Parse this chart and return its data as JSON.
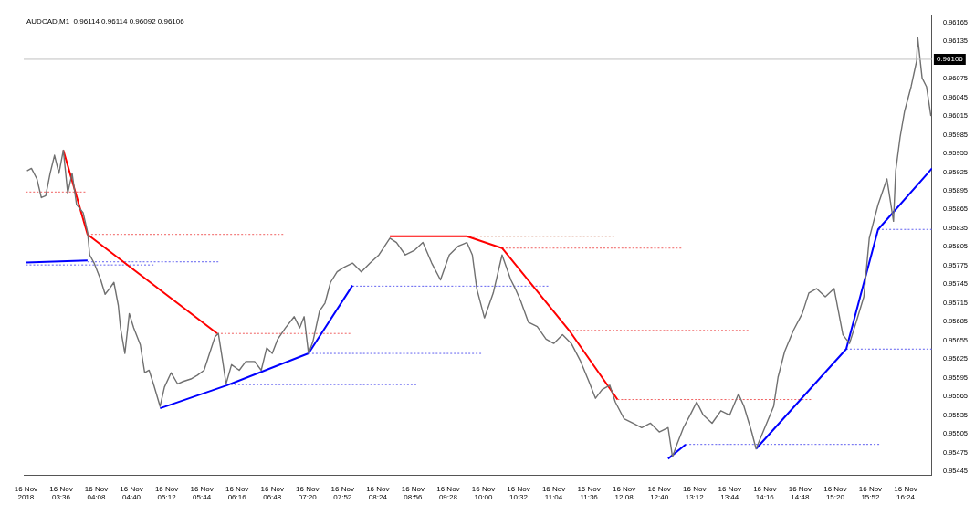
{
  "chart_data": {
    "type": "line",
    "title": "AUDCAD,M1  0.96114 0.96114 0.96092 0.96106",
    "xlim": [
      "2018-11-16T03:02",
      "2018-11-16T16:48"
    ],
    "xticks": [
      {
        "value": "2018-11-16T03:04",
        "label": "16 Nov 2018"
      },
      {
        "value": "2018-11-16T03:36",
        "label": "16 Nov 03:36"
      },
      {
        "value": "2018-11-16T04:08",
        "label": "16 Nov 04:08"
      },
      {
        "value": "2018-11-16T04:40",
        "label": "16 Nov 04:40"
      },
      {
        "value": "2018-11-16T05:12",
        "label": "16 Nov 05:12"
      },
      {
        "value": "2018-11-16T05:44",
        "label": "16 Nov 05:44"
      },
      {
        "value": "2018-11-16T06:16",
        "label": "16 Nov 06:16"
      },
      {
        "value": "2018-11-16T06:48",
        "label": "16 Nov 06:48"
      },
      {
        "value": "2018-11-16T07:20",
        "label": "16 Nov 07:20"
      },
      {
        "value": "2018-11-16T07:52",
        "label": "16 Nov 07:52"
      },
      {
        "value": "2018-11-16T08:24",
        "label": "16 Nov 08:24"
      },
      {
        "value": "2018-11-16T08:56",
        "label": "16 Nov 08:56"
      },
      {
        "value": "2018-11-16T09:28",
        "label": "16 Nov 09:28"
      },
      {
        "value": "2018-11-16T10:00",
        "label": "16 Nov 10:00"
      },
      {
        "value": "2018-11-16T10:32",
        "label": "16 Nov 10:32"
      },
      {
        "value": "2018-11-16T11:04",
        "label": "16 Nov 11:04"
      },
      {
        "value": "2018-11-16T11:36",
        "label": "16 Nov 11:36"
      },
      {
        "value": "2018-11-16T12:08",
        "label": "16 Nov 12:08"
      },
      {
        "value": "2018-11-16T12:40",
        "label": "16 Nov 12:40"
      },
      {
        "value": "2018-11-16T13:12",
        "label": "16 Nov 13:12"
      },
      {
        "value": "2018-11-16T13:44",
        "label": "16 Nov 13:44"
      },
      {
        "value": "2018-11-16T14:16",
        "label": "16 Nov 14:16"
      },
      {
        "value": "2018-11-16T14:48",
        "label": "16 Nov 14:48"
      },
      {
        "value": "2018-11-16T15:20",
        "label": "16 Nov 15:20"
      },
      {
        "value": "2018-11-16T15:52",
        "label": "16 Nov 15:52"
      },
      {
        "value": "2018-11-16T16:24",
        "label": "16 Nov 16:24"
      }
    ],
    "ylim": [
      0.95438,
      0.96177
    ],
    "yticks": [
      0.95445,
      0.95475,
      0.95505,
      0.95535,
      0.95565,
      0.95595,
      0.95625,
      0.95655,
      0.95685,
      0.95715,
      0.95745,
      0.95775,
      0.95805,
      0.95835,
      0.95865,
      0.95895,
      0.95925,
      0.95955,
      0.95985,
      0.96015,
      0.96045,
      0.96075,
      0.96135,
      0.96165
    ],
    "ref_lines": [
      {
        "axis": "y",
        "value": 0.96106,
        "label": "0.96106",
        "color": "#c0c0c0"
      }
    ],
    "grid": false,
    "legend": false,
    "marker": "none",
    "series": [
      {
        "color": "#707070",
        "line_style": "solid",
        "x": [
          "2018-11-16T03:05",
          "2018-11-16T03:09",
          "2018-11-16T03:14",
          "2018-11-16T03:18",
          "2018-11-16T03:22",
          "2018-11-16T03:26",
          "2018-11-16T03:30",
          "2018-11-16T03:34",
          "2018-11-16T03:38",
          "2018-11-16T03:42",
          "2018-11-16T03:46",
          "2018-11-16T03:50",
          "2018-11-16T03:56",
          "2018-11-16T04:00",
          "2018-11-16T04:02",
          "2018-11-16T04:06",
          "2018-11-16T04:12",
          "2018-11-16T04:16",
          "2018-11-16T04:20",
          "2018-11-16T04:24",
          "2018-11-16T04:28",
          "2018-11-16T04:30",
          "2018-11-16T04:34",
          "2018-11-16T04:38",
          "2018-11-16T04:42",
          "2018-11-16T04:48",
          "2018-11-16T04:52",
          "2018-11-16T04:56",
          "2018-11-16T05:00",
          "2018-11-16T05:06",
          "2018-11-16T05:10",
          "2018-11-16T05:16",
          "2018-11-16T05:22",
          "2018-11-16T05:27",
          "2018-11-16T05:34",
          "2018-11-16T05:40",
          "2018-11-16T05:46",
          "2018-11-16T05:51",
          "2018-11-16T05:56",
          "2018-11-16T05:59",
          "2018-11-16T06:03",
          "2018-11-16T06:06",
          "2018-11-16T06:11",
          "2018-11-16T06:18",
          "2018-11-16T06:24",
          "2018-11-16T06:32",
          "2018-11-16T06:38",
          "2018-11-16T06:43",
          "2018-11-16T06:48",
          "2018-11-16T06:53",
          "2018-11-16T07:00",
          "2018-11-16T07:08",
          "2018-11-16T07:13",
          "2018-11-16T07:17",
          "2018-11-16T07:21",
          "2018-11-16T07:25",
          "2018-11-16T07:31",
          "2018-11-16T07:36",
          "2018-11-16T07:41",
          "2018-11-16T07:47",
          "2018-11-16T07:53",
          "2018-11-16T08:01",
          "2018-11-16T08:09",
          "2018-11-16T08:17",
          "2018-11-16T08:25",
          "2018-11-16T08:35",
          "2018-11-16T08:41",
          "2018-11-16T08:49",
          "2018-11-16T08:57",
          "2018-11-16T09:05",
          "2018-11-16T09:13",
          "2018-11-16T09:21",
          "2018-11-16T09:29",
          "2018-11-16T09:37",
          "2018-11-16T09:45",
          "2018-11-16T09:50",
          "2018-11-16T09:54",
          "2018-11-16T10:01",
          "2018-11-16T10:09",
          "2018-11-16T10:17",
          "2018-11-16T10:25",
          "2018-11-16T10:29",
          "2018-11-16T10:34",
          "2018-11-16T10:41",
          "2018-11-16T10:49",
          "2018-11-16T10:57",
          "2018-11-16T11:04",
          "2018-11-16T11:12",
          "2018-11-16T11:20",
          "2018-11-16T11:28",
          "2018-11-16T11:36",
          "2018-11-16T11:42",
          "2018-11-16T11:48",
          "2018-11-16T11:55",
          "2018-11-16T12:00",
          "2018-11-16T12:08",
          "2018-11-16T12:16",
          "2018-11-16T12:24",
          "2018-11-16T12:32",
          "2018-11-16T12:40",
          "2018-11-16T12:48",
          "2018-11-16T12:52",
          "2018-11-16T12:56",
          "2018-11-16T13:02",
          "2018-11-16T13:08",
          "2018-11-16T13:14",
          "2018-11-16T13:20",
          "2018-11-16T13:28",
          "2018-11-16T13:36",
          "2018-11-16T13:44",
          "2018-11-16T13:52",
          "2018-11-16T13:57",
          "2018-11-16T14:04",
          "2018-11-16T14:08",
          "2018-11-16T14:16",
          "2018-11-16T14:24",
          "2018-11-16T14:28",
          "2018-11-16T14:34",
          "2018-11-16T14:42",
          "2018-11-16T14:50",
          "2018-11-16T14:56",
          "2018-11-16T15:03",
          "2018-11-16T15:11",
          "2018-11-16T15:19",
          "2018-11-16T15:27",
          "2018-11-16T15:33",
          "2018-11-16T15:39",
          "2018-11-16T15:46",
          "2018-11-16T15:51",
          "2018-11-16T15:59",
          "2018-11-16T16:07",
          "2018-11-16T16:13",
          "2018-11-16T16:15",
          "2018-11-16T16:19",
          "2018-11-16T16:23",
          "2018-11-16T16:29",
          "2018-11-16T16:34",
          "2018-11-16T16:35",
          "2018-11-16T16:39",
          "2018-11-16T16:43",
          "2018-11-16T16:47"
        ],
        "values": [
          0.95927,
          0.95931,
          0.95914,
          0.95884,
          0.95887,
          0.95923,
          0.95952,
          0.95923,
          0.9596,
          0.95891,
          0.95923,
          0.95873,
          0.9586,
          0.95829,
          0.95792,
          0.95779,
          0.95752,
          0.95729,
          0.95738,
          0.95748,
          0.95711,
          0.95675,
          0.95634,
          0.95698,
          0.95675,
          0.95648,
          0.95603,
          0.95607,
          0.95585,
          0.95549,
          0.9558,
          0.95603,
          0.95585,
          0.95589,
          0.95593,
          0.95599,
          0.95607,
          0.95634,
          0.95661,
          0.95666,
          0.95621,
          0.95585,
          0.95616,
          0.95607,
          0.95621,
          0.95621,
          0.95607,
          0.95643,
          0.95634,
          0.95657,
          0.95675,
          0.95693,
          0.95675,
          0.95693,
          0.95634,
          0.95653,
          0.95702,
          0.95715,
          0.95748,
          0.95765,
          0.95772,
          0.95779,
          0.95765,
          0.95779,
          0.95792,
          0.95819,
          0.95812,
          0.95792,
          0.95799,
          0.95812,
          0.95779,
          0.95752,
          0.95792,
          0.95806,
          0.95812,
          0.95792,
          0.95738,
          0.95691,
          0.95731,
          0.95792,
          0.95752,
          0.95738,
          0.95718,
          0.95684,
          0.95677,
          0.95657,
          0.9565,
          0.95664,
          0.9565,
          0.95623,
          0.95589,
          0.95562,
          0.95576,
          0.95583,
          0.95556,
          0.95529,
          0.95522,
          0.95515,
          0.95522,
          0.95508,
          0.95515,
          0.95468,
          0.95488,
          0.95515,
          0.95535,
          0.95556,
          0.95535,
          0.95522,
          0.95542,
          0.95535,
          0.95569,
          0.95549,
          0.95508,
          0.95481,
          0.95515,
          0.95549,
          0.95596,
          0.95637,
          0.95671,
          0.95698,
          0.95731,
          0.95738,
          0.95725,
          0.95738,
          0.95664,
          0.9565,
          0.95684,
          0.95725,
          0.95819,
          0.95873,
          0.95914,
          0.95846,
          0.95927,
          0.95981,
          0.96022,
          0.96062,
          0.96103,
          0.96141,
          0.96076,
          0.96062,
          0.96015
        ]
      },
      {
        "color": "#ff0000",
        "line_style": "solid",
        "x": [
          "2018-11-16T03:38",
          "2018-11-16T04:00",
          "2018-11-16T05:58"
        ],
        "values": [
          0.9596,
          0.95825,
          0.95666
        ]
      },
      {
        "color": "#ff0000",
        "line_style": "solid",
        "x": [
          "2018-11-16T08:35",
          "2018-11-16T09:45",
          "2018-11-16T10:17",
          "2018-11-16T11:18",
          "2018-11-16T12:02"
        ],
        "values": [
          0.95822,
          0.95822,
          0.95803,
          0.95671,
          0.9556
        ]
      },
      {
        "color": "#0000ff",
        "line_style": "solid",
        "x": [
          "2018-11-16T03:04",
          "2018-11-16T04:00"
        ],
        "values": [
          0.9578,
          0.95783
        ]
      },
      {
        "color": "#0000ff",
        "line_style": "solid",
        "x": [
          "2018-11-16T05:06",
          "2018-11-16T06:07",
          "2018-11-16T07:21",
          "2018-11-16T08:01"
        ],
        "values": [
          0.95546,
          0.95583,
          0.95634,
          0.95743
        ]
      },
      {
        "color": "#0000ff",
        "line_style": "solid",
        "x": [
          "2018-11-16T12:48",
          "2018-11-16T13:04"
        ],
        "values": [
          0.95465,
          0.95488
        ]
      },
      {
        "color": "#0000ff",
        "line_style": "solid",
        "x": [
          "2018-11-16T14:08",
          "2018-11-16T15:30",
          "2018-11-16T15:59",
          "2018-11-16T16:48"
        ],
        "values": [
          0.95481,
          0.95641,
          0.95833,
          0.95931
        ]
      },
      {
        "color": "#f06060",
        "line_style": "dotted",
        "x": [
          "2018-11-16T03:04",
          "2018-11-16T03:58"
        ],
        "values": [
          0.95893,
          0.95893
        ]
      },
      {
        "color": "#f06060",
        "line_style": "dotted",
        "x": [
          "2018-11-16T04:00",
          "2018-11-16T06:58"
        ],
        "values": [
          0.95825,
          0.95825
        ]
      },
      {
        "color": "#6060f0",
        "line_style": "dotted",
        "x": [
          "2018-11-16T04:00",
          "2018-11-16T05:59"
        ],
        "values": [
          0.95781,
          0.95781
        ]
      },
      {
        "color": "#6060f0",
        "line_style": "dotted",
        "x": [
          "2018-11-16T03:04",
          "2018-11-16T05:00"
        ],
        "values": [
          0.95776,
          0.95776
        ]
      },
      {
        "color": "#f06060",
        "line_style": "dotted",
        "x": [
          "2018-11-16T05:58",
          "2018-11-16T07:59"
        ],
        "values": [
          0.95666,
          0.95666
        ]
      },
      {
        "color": "#6060f0",
        "line_style": "dotted",
        "x": [
          "2018-11-16T07:21",
          "2018-11-16T09:58"
        ],
        "values": [
          0.95634,
          0.95634
        ]
      },
      {
        "color": "#6060f0",
        "line_style": "dotted",
        "x": [
          "2018-11-16T06:07",
          "2018-11-16T08:59"
        ],
        "values": [
          0.95584,
          0.95584
        ]
      },
      {
        "color": "#6060f0",
        "line_style": "dotted",
        "x": [
          "2018-11-16T08:01",
          "2018-11-16T10:59"
        ],
        "values": [
          0.95742,
          0.95742
        ]
      },
      {
        "color": "#c06040",
        "line_style": "dotted",
        "x": [
          "2018-11-16T09:47",
          "2018-11-16T11:59"
        ],
        "values": [
          0.95822,
          0.95822
        ]
      },
      {
        "color": "#f06060",
        "line_style": "dotted",
        "x": [
          "2018-11-16T10:17",
          "2018-11-16T13:00"
        ],
        "values": [
          0.95803,
          0.95803
        ]
      },
      {
        "color": "#f06060",
        "line_style": "dotted",
        "x": [
          "2018-11-16T11:18",
          "2018-11-16T14:01"
        ],
        "values": [
          0.95671,
          0.95671
        ]
      },
      {
        "color": "#f06060",
        "line_style": "dotted",
        "x": [
          "2018-11-16T12:02",
          "2018-11-16T14:58"
        ],
        "values": [
          0.9556,
          0.9556
        ]
      },
      {
        "color": "#6060f0",
        "line_style": "dotted",
        "x": [
          "2018-11-16T13:04",
          "2018-11-16T16:00"
        ],
        "values": [
          0.95488,
          0.95488
        ]
      },
      {
        "color": "#6060f0",
        "line_style": "dotted",
        "x": [
          "2018-11-16T15:30",
          "2018-11-16T16:48"
        ],
        "values": [
          0.95641,
          0.95641
        ]
      },
      {
        "color": "#6060f0",
        "line_style": "dotted",
        "x": [
          "2018-11-16T15:59",
          "2018-11-16T16:48"
        ],
        "values": [
          0.95833,
          0.95833
        ]
      }
    ]
  }
}
